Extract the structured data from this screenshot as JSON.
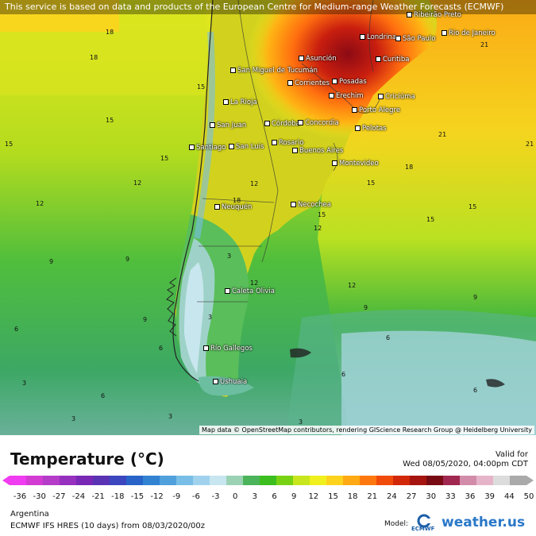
{
  "notice": "This service is based on data and products of the European Centre for Medium-range Weather Forecasts (ECMWF)",
  "attribution": "Map data © OpenStreetMap contributors, rendering GIScience Research Group @ Heidelberg University",
  "cities": [
    {
      "name": "Ribeirão Preto"
    },
    {
      "name": "Londrina"
    },
    {
      "name": "São Paulo"
    },
    {
      "name": "Rio de Janeiro"
    },
    {
      "name": "Curitiba"
    },
    {
      "name": "Asunción"
    },
    {
      "name": "San Miguel de Tucumán"
    },
    {
      "name": "Corrientes"
    },
    {
      "name": "Posadas"
    },
    {
      "name": "Erechim"
    },
    {
      "name": "Criciúma"
    },
    {
      "name": "La Rioja"
    },
    {
      "name": "Porto Alegre"
    },
    {
      "name": "San Juan"
    },
    {
      "name": "Córdoba"
    },
    {
      "name": "Concordia"
    },
    {
      "name": "Pelotas"
    },
    {
      "name": "Santiago"
    },
    {
      "name": "San Luis"
    },
    {
      "name": "Rosario"
    },
    {
      "name": "Buenos Aires"
    },
    {
      "name": "Montevideo"
    },
    {
      "name": "Neuquén"
    },
    {
      "name": "Necochea"
    },
    {
      "name": "Caleta Olivia"
    },
    {
      "name": "Río Gallegos"
    },
    {
      "name": "Ushuaia"
    }
  ],
  "isolines": [
    "18",
    "18",
    "21",
    "15",
    "15",
    "15",
    "15",
    "12",
    "12",
    "9",
    "9",
    "9",
    "6",
    "6",
    "6",
    "3",
    "3",
    "3",
    "12",
    "15",
    "18",
    "21",
    "21",
    "15",
    "15",
    "18",
    "12",
    "12",
    "15",
    "12",
    "9",
    "9",
    "6",
    "6",
    "6",
    "3",
    "3",
    "3"
  ],
  "legend": {
    "title": "Temperature (°C)",
    "valid_label": "Valid for",
    "valid_time": "Wed 08/05/2020, 04:00pm CDT",
    "ticks": [
      "-36",
      "-30",
      "-27",
      "-24",
      "-21",
      "-18",
      "-15",
      "-12",
      "-9",
      "-6",
      "-3",
      "0",
      "3",
      "6",
      "9",
      "12",
      "15",
      "18",
      "21",
      "24",
      "27",
      "30",
      "33",
      "36",
      "39",
      "44",
      "50"
    ],
    "colors": [
      "#f03cf0",
      "#d23cd2",
      "#b43cc8",
      "#9630be",
      "#7828b4",
      "#5a32b4",
      "#3c46be",
      "#2864c8",
      "#3282d2",
      "#50a0dc",
      "#78bee6",
      "#a0d2ee",
      "#c8e6f0",
      "#9bd2b4",
      "#4bb45a",
      "#3cbe1e",
      "#78d214",
      "#c8e61e",
      "#f0f01e",
      "#ffd21e",
      "#ffaa14",
      "#ff780f",
      "#f04b0a",
      "#d2280a",
      "#a5140f",
      "#780a14",
      "#a02850",
      "#d28caa",
      "#e6b4c8",
      "#dcdcdc",
      "#aaaaaa"
    ]
  },
  "region": "Argentina",
  "model_run": "ECMWF IFS HRES (10 days) from 08/03/2020/00z",
  "model_label": "Model:",
  "model_logo_text": "ECMWF",
  "brand": "weather.us"
}
